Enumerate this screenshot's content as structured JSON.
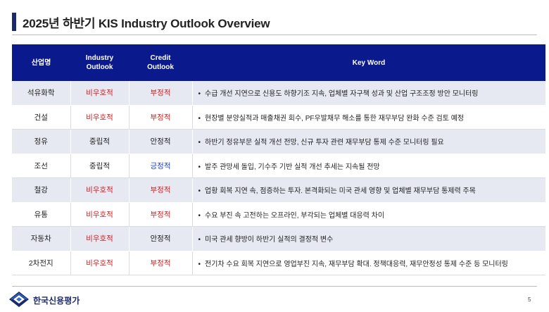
{
  "header": {
    "title": "2025년 하반기 KIS Industry Outlook Overview"
  },
  "table": {
    "headers": {
      "industry": "산업명",
      "industry_outlook": [
        "Industry",
        "Outlook"
      ],
      "credit_outlook": [
        "Credit",
        "Outlook"
      ],
      "keyword": "Key Word"
    },
    "rows": [
      {
        "industry": "석유화학",
        "industry_outlook": "비우호적",
        "credit_outlook": "부정적",
        "keyword": "수급 개선 지연으로 신용도 하향기조 지속, 업체별 자구책 성과 및 산업 구조조정 방안 모니터링"
      },
      {
        "industry": "건설",
        "industry_outlook": "비우호적",
        "credit_outlook": "부정적",
        "keyword": "현장별 분양실적과 매출채권 회수, PF우발채무 해소를 통한 재무부담 완화 수준 검토 예정"
      },
      {
        "industry": "정유",
        "industry_outlook": "중립적",
        "credit_outlook": "안정적",
        "keyword": "하반기 정유부문 실적 개선 전망, 신규 투자 관련 재무부담 통제 수준 모니터링 필요"
      },
      {
        "industry": "조선",
        "industry_outlook": "중립적",
        "credit_outlook": "긍정적",
        "keyword": "발주 관망세 돌입, 기수주 기반 실적 개선 추세는 지속될 전망"
      },
      {
        "industry": "철강",
        "industry_outlook": "비우호적",
        "credit_outlook": "부정적",
        "keyword": "업황 회복 지연 속, 점증하는 투자. 본격화되는 미국 관세 영향 및 업체별 재무부담 통제력 주목"
      },
      {
        "industry": "유통",
        "industry_outlook": "비우호적",
        "credit_outlook": "부정적",
        "keyword": "수요 부진 속 고전하는 오프라인, 부각되는 업체별 대응력 차이"
      },
      {
        "industry": "자동차",
        "industry_outlook": "비우호적",
        "credit_outlook": "안정적",
        "keyword": "미국 관세 향방이 하반기 실적의 결정적 변수"
      },
      {
        "industry": "2차전지",
        "industry_outlook": "비우호적",
        "credit_outlook": "부정적",
        "keyword": "전기차 수요 회복 지연으로 영업부진 지속, 재무부담 확대. 정책대응력, 재무안정성 통제 수준 등 모니터링"
      }
    ]
  },
  "colors": {
    "negative": "#d81e1e",
    "positive": "#1a3fd6",
    "neutral": "#222222",
    "header_bg": "#0a1a8c"
  },
  "footer": {
    "logo_text": "한국신용평가",
    "page_number": "5",
    "logo_icon": "kis-diamond-logo-icon"
  }
}
